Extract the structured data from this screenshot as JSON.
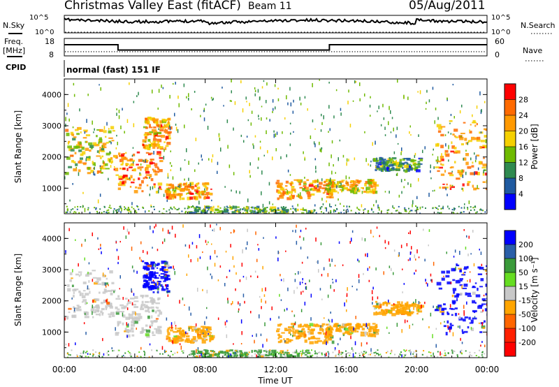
{
  "header": {
    "title": "Christmas Valley East (fitACF)",
    "beam": "Beam 11",
    "date": "05/Aug/2011"
  },
  "noise_panel": {
    "left_label": "N.Sky",
    "right_label": "N.Search",
    "ticks": [
      "10^5",
      "10^0"
    ]
  },
  "freq_panel": {
    "left_label_1": "Freq.",
    "left_label_2": "[MHz]",
    "left_ticks": [
      "18",
      "8"
    ],
    "right_label": "Nave",
    "right_ticks": [
      "60",
      "0"
    ],
    "cpid_label": "CPID",
    "cpid_value": "normal (fast) 151 IF",
    "freq_series": [
      {
        "t": 0.0,
        "mhz": 14.5
      },
      {
        "t": 3.05,
        "mhz": 14.5
      },
      {
        "t": 3.05,
        "mhz": 10.7
      },
      {
        "t": 15.05,
        "mhz": 10.7
      },
      {
        "t": 15.05,
        "mhz": 14.5
      },
      {
        "t": 24.0,
        "mhz": 14.5
      }
    ]
  },
  "power_panel": {
    "ylabel": "Slant Range [km]",
    "colorbar_label": "Power [dB]",
    "colorbar_ticks": [
      "28",
      "24",
      "20",
      "16",
      "12",
      "8",
      "4"
    ],
    "colorbar_colors": [
      "#ff0000",
      "#ff6a00",
      "#ff9900",
      "#f5d000",
      "#6fba00",
      "#2f8a50",
      "#1f5aa0",
      "#0000ff"
    ]
  },
  "velocity_panel": {
    "ylabel": "Slant Range [km]",
    "colorbar_label": "Velocity [m s⁻¹]",
    "colorbar_ticks": [
      "200",
      "100",
      "50",
      "15",
      "-15",
      "-50",
      "-100",
      "-200"
    ],
    "colorbar_colors": [
      "#0000ff",
      "#2a5fa8",
      "#3a9a3a",
      "#66dd22",
      "#c8c8c8",
      "#ffa500",
      "#ff6600",
      "#ff2000",
      "#ff0000"
    ]
  },
  "axes": {
    "xlabel": "Time UT",
    "xticks": [
      "00:00",
      "04:00",
      "08:00",
      "12:00",
      "16:00",
      "20:00",
      "00:00"
    ],
    "yticks": [
      "1000",
      "2000",
      "3000",
      "4000"
    ]
  },
  "chart_data": {
    "type": "heatmap",
    "title": "Christmas Valley East (fitACF)",
    "xlabel": "Time UT",
    "ylabel": "Slant Range [km]",
    "xlim": [
      0,
      24
    ],
    "ylim": [
      180,
      4500
    ],
    "regions": [
      {
        "t_start": 0.0,
        "t_end": 2.8,
        "range_start": 1500,
        "range_end": 3000,
        "power_db": 16,
        "velocity": 0
      },
      {
        "t_start": 2.8,
        "t_end": 5.4,
        "range_start": 900,
        "range_end": 2200,
        "power_db": 22,
        "velocity": 0
      },
      {
        "t_start": 4.4,
        "t_end": 5.9,
        "range_start": 2300,
        "range_end": 3300,
        "power_db": 20,
        "velocity": 200
      },
      {
        "t_start": 5.7,
        "t_end": 8.3,
        "range_start": 700,
        "range_end": 1200,
        "power_db": 20,
        "velocity": -15
      },
      {
        "t_start": 12.0,
        "t_end": 15.2,
        "range_start": 700,
        "range_end": 1300,
        "power_db": 20,
        "velocity": -15
      },
      {
        "t_start": 14.8,
        "t_end": 17.7,
        "range_start": 900,
        "range_end": 1300,
        "power_db": 18,
        "velocity": -15
      },
      {
        "t_start": 17.5,
        "t_end": 20.2,
        "range_start": 1600,
        "range_end": 2000,
        "power_db": 8,
        "velocity": -15
      },
      {
        "t_start": 21.0,
        "t_end": 24.0,
        "range_start": 1000,
        "range_end": 3200,
        "power_db": 20,
        "velocity": 200
      },
      {
        "t_start": 7.0,
        "t_end": 14.0,
        "range_start": 200,
        "range_end": 450,
        "power_db": 10,
        "velocity": 50
      }
    ]
  }
}
